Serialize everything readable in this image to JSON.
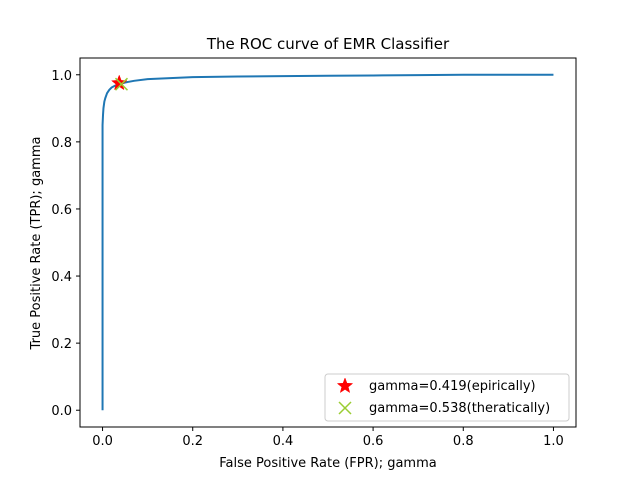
{
  "chart_data": {
    "type": "line",
    "title": "The ROC curve of EMR Classifier",
    "xlabel": "False Positive Rate (FPR); gamma",
    "ylabel": "True Positive Rate (TPR); gamma",
    "xlim": [
      -0.05,
      1.05
    ],
    "ylim": [
      -0.05,
      1.05
    ],
    "xticks": [
      0.0,
      0.2,
      0.4,
      0.6,
      0.8,
      1.0
    ],
    "xtick_labels": [
      "0.0",
      "0.2",
      "0.4",
      "0.6",
      "0.8",
      "1.0"
    ],
    "yticks": [
      0.0,
      0.2,
      0.4,
      0.6,
      0.8,
      1.0
    ],
    "ytick_labels": [
      "0.0",
      "0.2",
      "0.4",
      "0.6",
      "0.8",
      "1.0"
    ],
    "grid": false,
    "legend_position": "lower-right",
    "series": [
      {
        "color": "#1f77b4",
        "x": [
          0.0,
          0.0,
          0.0,
          0.0,
          0.001,
          0.002,
          0.004,
          0.006,
          0.01,
          0.015,
          0.02,
          0.03,
          0.04,
          0.05,
          0.07,
          0.1,
          0.15,
          0.2,
          0.3,
          0.4,
          0.5,
          0.6,
          0.7,
          0.8,
          0.9,
          1.0
        ],
        "y": [
          0.0,
          0.6,
          0.8,
          0.85,
          0.88,
          0.9,
          0.92,
          0.93,
          0.945,
          0.955,
          0.962,
          0.969,
          0.973,
          0.977,
          0.982,
          0.987,
          0.99,
          0.993,
          0.995,
          0.996,
          0.997,
          0.998,
          0.999,
          1.0,
          1.0,
          1.0
        ]
      }
    ],
    "markers": [
      {
        "name": "gamma=0.419(epirically)",
        "x": 0.037,
        "y": 0.975,
        "symbol": "star",
        "color": "#ff0000"
      },
      {
        "name": "gamma=0.538(theratically)",
        "x": 0.042,
        "y": 0.972,
        "symbol": "x",
        "color": "#9acd32"
      }
    ]
  }
}
